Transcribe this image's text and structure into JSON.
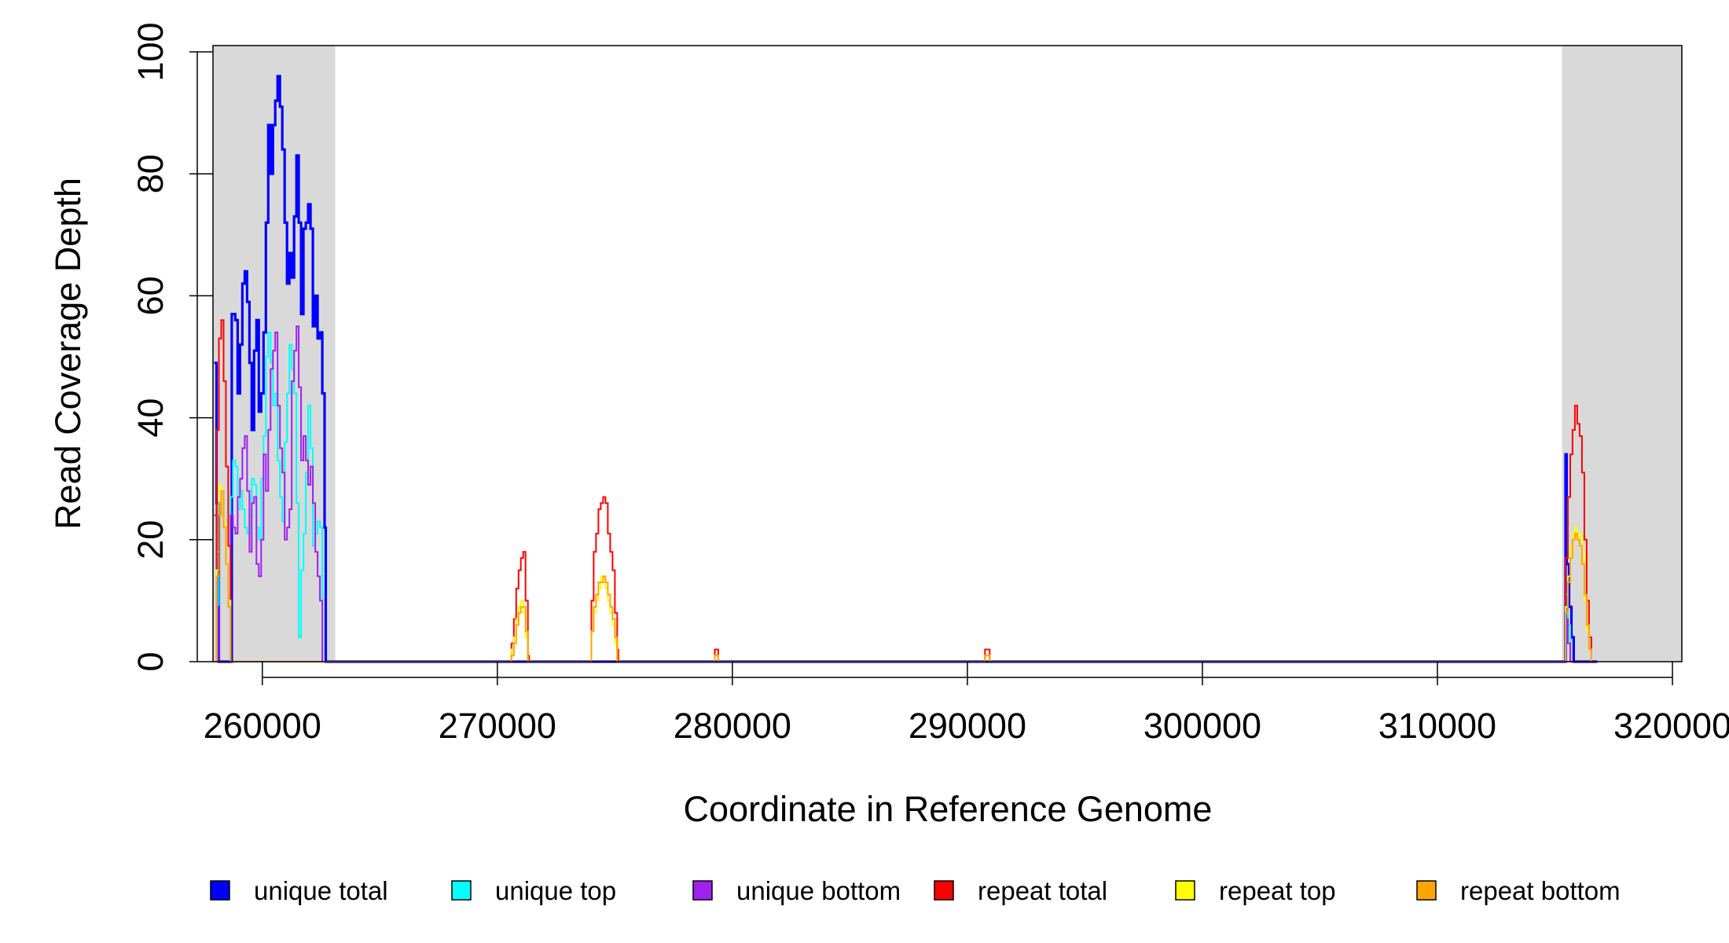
{
  "chart_data": {
    "type": "line",
    "title": "",
    "xlabel": "Coordinate in Reference Genome",
    "ylabel": "Read Coverage Depth",
    "xlim": [
      257900,
      320400
    ],
    "ylim": [
      0,
      100
    ],
    "x_ticks": [
      260000,
      270000,
      280000,
      290000,
      300000,
      310000,
      320000
    ],
    "x_tick_labels": [
      "260000",
      "270000",
      "280000",
      "290000",
      "300000",
      "310000",
      "320000"
    ],
    "y_ticks": [
      0,
      20,
      40,
      60,
      80,
      100
    ],
    "y_tick_labels": [
      "0",
      "20",
      "40",
      "60",
      "80",
      "100"
    ],
    "shaded_regions": [
      [
        257900,
        263100
      ],
      [
        315300,
        320400
      ]
    ],
    "shade_color": "#d9d9d9",
    "grid": false,
    "legend_position": "bottom",
    "series": [
      {
        "name": "unique total",
        "color": "#0000ff",
        "points": [
          [
            257950,
            49
          ],
          [
            258050,
            26
          ],
          [
            258150,
            0
          ],
          [
            258550,
            0
          ],
          [
            258700,
            57
          ],
          [
            258850,
            56
          ],
          [
            258950,
            44
          ],
          [
            259050,
            52
          ],
          [
            259150,
            62
          ],
          [
            259250,
            64
          ],
          [
            259350,
            59
          ],
          [
            259450,
            49
          ],
          [
            259550,
            38
          ],
          [
            259650,
            51
          ],
          [
            259750,
            56
          ],
          [
            259850,
            41
          ],
          [
            259950,
            44
          ],
          [
            260050,
            54
          ],
          [
            260150,
            72
          ],
          [
            260250,
            88
          ],
          [
            260350,
            80
          ],
          [
            260450,
            88
          ],
          [
            260550,
            92
          ],
          [
            260650,
            96
          ],
          [
            260750,
            91
          ],
          [
            260850,
            84
          ],
          [
            260950,
            72
          ],
          [
            261050,
            62
          ],
          [
            261150,
            67
          ],
          [
            261250,
            63
          ],
          [
            261350,
            73
          ],
          [
            261450,
            83
          ],
          [
            261550,
            72
          ],
          [
            261650,
            57
          ],
          [
            261750,
            71
          ],
          [
            261850,
            72
          ],
          [
            261950,
            75
          ],
          [
            262050,
            71
          ],
          [
            262150,
            55
          ],
          [
            262250,
            60
          ],
          [
            262350,
            53
          ],
          [
            262450,
            54
          ],
          [
            262550,
            44
          ],
          [
            262650,
            22
          ],
          [
            262700,
            0
          ],
          [
            315400,
            0
          ],
          [
            315450,
            34
          ],
          [
            315500,
            16
          ],
          [
            315600,
            9
          ],
          [
            315700,
            4
          ],
          [
            315800,
            0
          ],
          [
            316800,
            0
          ]
        ]
      },
      {
        "name": "unique top",
        "color": "#00ffff",
        "points": [
          [
            257950,
            24
          ],
          [
            258050,
            18
          ],
          [
            258150,
            0
          ],
          [
            258550,
            0
          ],
          [
            258650,
            27
          ],
          [
            258750,
            33
          ],
          [
            258850,
            32
          ],
          [
            258950,
            25
          ],
          [
            259050,
            28
          ],
          [
            259150,
            25
          ],
          [
            259250,
            22
          ],
          [
            259350,
            21
          ],
          [
            259450,
            24
          ],
          [
            259550,
            30
          ],
          [
            259650,
            29
          ],
          [
            259750,
            22
          ],
          [
            259850,
            20
          ],
          [
            259950,
            30
          ],
          [
            260050,
            37
          ],
          [
            260150,
            50
          ],
          [
            260250,
            54
          ],
          [
            260350,
            49
          ],
          [
            260450,
            42
          ],
          [
            260550,
            44
          ],
          [
            260650,
            33
          ],
          [
            260750,
            27
          ],
          [
            260850,
            23
          ],
          [
            260950,
            36
          ],
          [
            261050,
            44
          ],
          [
            261150,
            52
          ],
          [
            261250,
            48
          ],
          [
            261350,
            44
          ],
          [
            261450,
            26
          ],
          [
            261550,
            4
          ],
          [
            261650,
            15
          ],
          [
            261750,
            21
          ],
          [
            261850,
            31
          ],
          [
            261950,
            42
          ],
          [
            262050,
            35
          ],
          [
            262150,
            19
          ],
          [
            262250,
            21
          ],
          [
            262350,
            23
          ],
          [
            262450,
            22
          ],
          [
            262550,
            0
          ],
          [
            315400,
            0
          ],
          [
            315450,
            11
          ],
          [
            315550,
            6
          ],
          [
            315650,
            0
          ],
          [
            316800,
            0
          ]
        ]
      },
      {
        "name": "unique bottom",
        "color": "#a020f0",
        "points": [
          [
            257950,
            24
          ],
          [
            258050,
            9
          ],
          [
            258150,
            0
          ],
          [
            258550,
            0
          ],
          [
            258650,
            24
          ],
          [
            258750,
            22
          ],
          [
            258850,
            21
          ],
          [
            258950,
            27
          ],
          [
            259050,
            30
          ],
          [
            259150,
            35
          ],
          [
            259250,
            37
          ],
          [
            259350,
            28
          ],
          [
            259450,
            18
          ],
          [
            259550,
            26
          ],
          [
            259650,
            27
          ],
          [
            259750,
            16
          ],
          [
            259850,
            14
          ],
          [
            259950,
            20
          ],
          [
            260050,
            34
          ],
          [
            260150,
            28
          ],
          [
            260250,
            38
          ],
          [
            260350,
            48
          ],
          [
            260450,
            51
          ],
          [
            260550,
            54
          ],
          [
            260650,
            42
          ],
          [
            260750,
            35
          ],
          [
            260850,
            31
          ],
          [
            260950,
            20
          ],
          [
            261050,
            22
          ],
          [
            261150,
            25
          ],
          [
            261250,
            46
          ],
          [
            261350,
            51
          ],
          [
            261450,
            55
          ],
          [
            261550,
            45
          ],
          [
            261650,
            33
          ],
          [
            261750,
            37
          ],
          [
            261850,
            33
          ],
          [
            261950,
            29
          ],
          [
            262050,
            32
          ],
          [
            262150,
            26
          ],
          [
            262250,
            18
          ],
          [
            262350,
            14
          ],
          [
            262450,
            10
          ],
          [
            262550,
            0
          ],
          [
            315400,
            0
          ],
          [
            315450,
            7
          ],
          [
            315550,
            3
          ],
          [
            315650,
            0
          ],
          [
            316800,
            0
          ]
        ]
      },
      {
        "name": "repeat total",
        "color": "#ff0000",
        "points": [
          [
            257950,
            0
          ],
          [
            258050,
            38
          ],
          [
            258150,
            53
          ],
          [
            258250,
            56
          ],
          [
            258350,
            46
          ],
          [
            258450,
            32
          ],
          [
            258550,
            19
          ],
          [
            258650,
            0
          ],
          [
            270500,
            0
          ],
          [
            270600,
            3
          ],
          [
            270700,
            7
          ],
          [
            270800,
            12
          ],
          [
            270900,
            15
          ],
          [
            271000,
            17
          ],
          [
            271100,
            18
          ],
          [
            271200,
            10
          ],
          [
            271300,
            1
          ],
          [
            271350,
            0
          ],
          [
            273900,
            0
          ],
          [
            274000,
            10
          ],
          [
            274100,
            18
          ],
          [
            274200,
            21
          ],
          [
            274300,
            25
          ],
          [
            274400,
            26
          ],
          [
            274500,
            27
          ],
          [
            274600,
            26
          ],
          [
            274700,
            21
          ],
          [
            274800,
            18
          ],
          [
            274900,
            15
          ],
          [
            275000,
            8
          ],
          [
            275100,
            2
          ],
          [
            275150,
            0
          ],
          [
            279200,
            0
          ],
          [
            279250,
            2
          ],
          [
            279350,
            2
          ],
          [
            279400,
            0
          ],
          [
            290700,
            0
          ],
          [
            290750,
            2
          ],
          [
            290900,
            2
          ],
          [
            290950,
            0
          ],
          [
            315400,
            0
          ],
          [
            315450,
            17
          ],
          [
            315550,
            27
          ],
          [
            315650,
            34
          ],
          [
            315750,
            38
          ],
          [
            315850,
            42
          ],
          [
            315950,
            39
          ],
          [
            316050,
            37
          ],
          [
            316150,
            31
          ],
          [
            316250,
            20
          ],
          [
            316350,
            10
          ],
          [
            316450,
            4
          ],
          [
            316550,
            0
          ]
        ]
      },
      {
        "name": "repeat top",
        "color": "#ffff00",
        "points": [
          [
            257950,
            0
          ],
          [
            258050,
            15
          ],
          [
            258150,
            29
          ],
          [
            258250,
            26
          ],
          [
            258350,
            23
          ],
          [
            258450,
            16
          ],
          [
            258550,
            10
          ],
          [
            258650,
            0
          ],
          [
            270500,
            0
          ],
          [
            270600,
            2
          ],
          [
            270700,
            4
          ],
          [
            270800,
            7
          ],
          [
            270900,
            9
          ],
          [
            271000,
            10
          ],
          [
            271100,
            8
          ],
          [
            271200,
            4
          ],
          [
            271300,
            0
          ],
          [
            273900,
            0
          ],
          [
            274000,
            5
          ],
          [
            274100,
            8
          ],
          [
            274200,
            10
          ],
          [
            274300,
            12
          ],
          [
            274400,
            14
          ],
          [
            274500,
            13
          ],
          [
            274600,
            12
          ],
          [
            274700,
            10
          ],
          [
            274800,
            8
          ],
          [
            274900,
            6
          ],
          [
            275000,
            3
          ],
          [
            275100,
            0
          ],
          [
            279200,
            0
          ],
          [
            279250,
            1
          ],
          [
            279350,
            1
          ],
          [
            279400,
            0
          ],
          [
            290700,
            0
          ],
          [
            290750,
            1
          ],
          [
            290900,
            1
          ],
          [
            290950,
            0
          ],
          [
            315400,
            0
          ],
          [
            315450,
            9
          ],
          [
            315550,
            14
          ],
          [
            315650,
            19
          ],
          [
            315750,
            21
          ],
          [
            315850,
            22
          ],
          [
            315950,
            20
          ],
          [
            316050,
            21
          ],
          [
            316150,
            18
          ],
          [
            316250,
            10
          ],
          [
            316350,
            5
          ],
          [
            316450,
            2
          ],
          [
            316550,
            0
          ]
        ]
      },
      {
        "name": "repeat bottom",
        "color": "#ffa500",
        "points": [
          [
            257950,
            0
          ],
          [
            258050,
            14
          ],
          [
            258150,
            24
          ],
          [
            258250,
            28
          ],
          [
            258350,
            22
          ],
          [
            258450,
            16
          ],
          [
            258550,
            9
          ],
          [
            258650,
            0
          ],
          [
            270500,
            0
          ],
          [
            270600,
            1
          ],
          [
            270700,
            3
          ],
          [
            270800,
            6
          ],
          [
            270900,
            8
          ],
          [
            271000,
            9
          ],
          [
            271100,
            9
          ],
          [
            271200,
            5
          ],
          [
            271300,
            0
          ],
          [
            273900,
            0
          ],
          [
            274000,
            5
          ],
          [
            274100,
            9
          ],
          [
            274200,
            11
          ],
          [
            274300,
            13
          ],
          [
            274400,
            13
          ],
          [
            274500,
            14
          ],
          [
            274600,
            13
          ],
          [
            274700,
            11
          ],
          [
            274800,
            9
          ],
          [
            274900,
            7
          ],
          [
            275000,
            4
          ],
          [
            275100,
            0
          ],
          [
            279200,
            0
          ],
          [
            279250,
            1
          ],
          [
            279350,
            1
          ],
          [
            279400,
            0
          ],
          [
            290700,
            0
          ],
          [
            290750,
            1
          ],
          [
            290900,
            1
          ],
          [
            290950,
            0
          ],
          [
            315400,
            0
          ],
          [
            315450,
            8
          ],
          [
            315550,
            13
          ],
          [
            315650,
            17
          ],
          [
            315750,
            20
          ],
          [
            315850,
            21
          ],
          [
            315950,
            20
          ],
          [
            316050,
            19
          ],
          [
            316150,
            16
          ],
          [
            316250,
            11
          ],
          [
            316350,
            6
          ],
          [
            316450,
            2
          ],
          [
            316550,
            0
          ]
        ]
      }
    ]
  }
}
